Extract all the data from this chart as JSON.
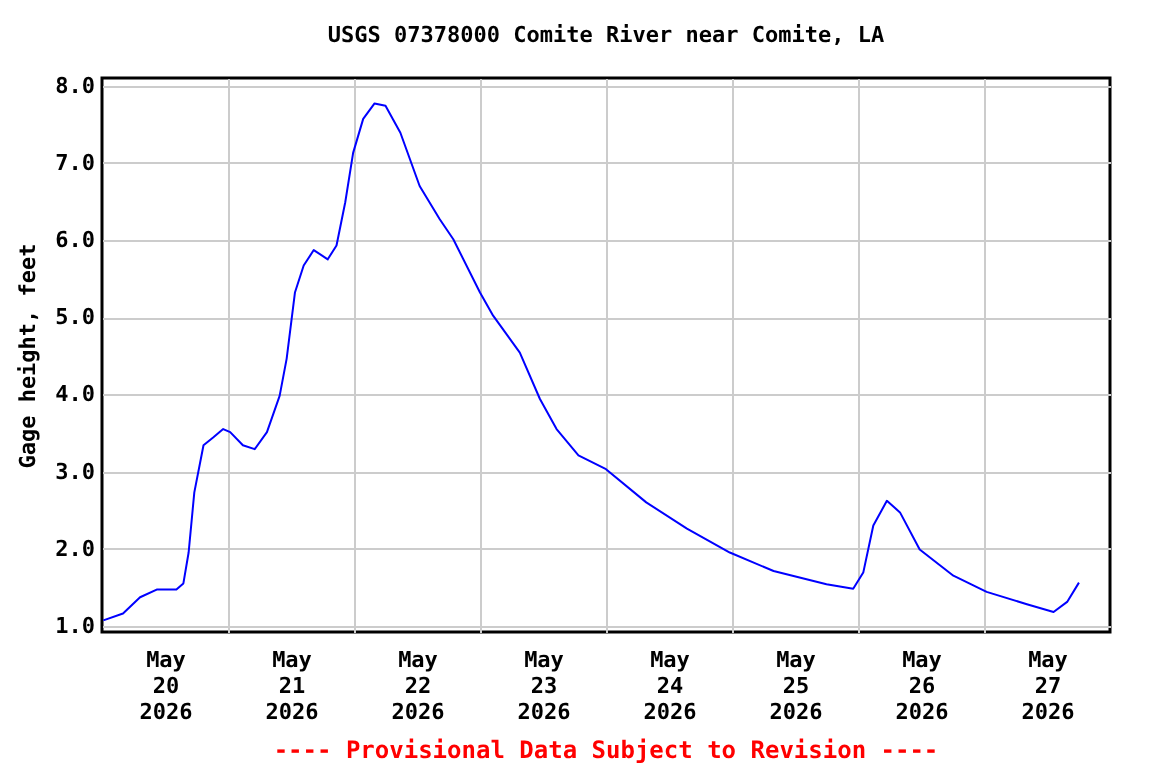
{
  "chart_data": {
    "type": "line",
    "title": "USGS 07378000 Comite River near Comite, LA",
    "ylabel": "Gage height, feet",
    "annotations": [
      "---- Provisional Data Subject to Revision ----"
    ],
    "x": [
      "2026-05-20T00:15",
      "2026-05-20T04:00",
      "2026-05-20T07:15",
      "2026-05-20T10:25",
      "2026-05-20T14:10",
      "2026-05-20T15:30",
      "2026-05-20T16:30",
      "2026-05-20T17:35",
      "2026-05-20T19:20",
      "2026-05-20T21:10",
      "2026-05-20T23:05",
      "2026-05-21T00:25",
      "2026-05-21T02:50",
      "2026-05-21T05:05",
      "2026-05-21T07:25",
      "2026-05-21T09:50",
      "2026-05-21T11:10",
      "2026-05-21T12:45",
      "2026-05-21T14:25",
      "2026-05-21T16:20",
      "2026-05-21T19:00",
      "2026-05-21T20:40",
      "2026-05-21T22:20",
      "2026-05-21T23:50",
      "2026-05-22T01:45",
      "2026-05-22T03:55",
      "2026-05-22T06:00",
      "2026-05-22T08:50",
      "2026-05-22T12:30",
      "2026-05-22T16:20",
      "2026-05-22T18:55",
      "2026-05-23T00:00",
      "2026-05-23T02:30",
      "2026-05-23T07:35",
      "2026-05-23T11:25",
      "2026-05-23T14:35",
      "2026-05-23T18:45",
      "2026-05-24T00:00",
      "2026-05-24T07:40",
      "2026-05-24T15:25",
      "2026-05-24T23:35",
      "2026-05-25T07:55",
      "2026-05-25T18:00",
      "2026-05-25T23:05",
      "2026-05-26T01:00",
      "2026-05-26T02:55",
      "2026-05-26T05:30",
      "2026-05-26T08:00",
      "2026-05-26T11:45",
      "2026-05-26T18:10",
      "2026-05-27T00:30",
      "2026-05-27T08:10",
      "2026-05-27T13:15",
      "2026-05-27T15:50",
      "2026-05-27T18:05"
    ],
    "series": [
      {
        "color": "#0000ff",
        "values": [
          1.07,
          1.16,
          1.37,
          1.47,
          1.47,
          1.55,
          1.95,
          2.73,
          3.34,
          3.44,
          3.55,
          3.51,
          3.34,
          3.29,
          3.51,
          3.98,
          4.46,
          5.32,
          5.67,
          5.87,
          5.75,
          5.93,
          6.49,
          7.13,
          7.57,
          7.77,
          7.74,
          7.39,
          6.7,
          6.27,
          6.01,
          5.32,
          5.02,
          4.54,
          3.94,
          3.55,
          3.21,
          3.03,
          2.6,
          2.26,
          1.95,
          1.71,
          1.54,
          1.48,
          1.69,
          2.3,
          2.62,
          2.47,
          1.99,
          1.65,
          1.44,
          1.28,
          1.18,
          1.31,
          1.56
        ]
      }
    ],
    "xlim": [
      "2026-05-20T00:00",
      "2026-05-28T00:00"
    ],
    "xticks": [
      {
        "value": "2026-05-20T12:00",
        "label": "May\n20\n2026"
      },
      {
        "value": "2026-05-21T00:00",
        "label": null
      },
      {
        "value": "2026-05-21T12:00",
        "label": "May\n21\n2026"
      },
      {
        "value": "2026-05-22T00:00",
        "label": null
      },
      {
        "value": "2026-05-22T12:00",
        "label": "May\n22\n2026"
      },
      {
        "value": "2026-05-23T00:00",
        "label": null
      },
      {
        "value": "2026-05-23T12:00",
        "label": "May\n23\n2026"
      },
      {
        "value": "2026-05-24T00:00",
        "label": null
      },
      {
        "value": "2026-05-24T12:00",
        "label": "May\n24\n2026"
      },
      {
        "value": "2026-05-25T00:00",
        "label": null
      },
      {
        "value": "2026-05-25T12:00",
        "label": "May\n25\n2026"
      },
      {
        "value": "2026-05-26T00:00",
        "label": null
      },
      {
        "value": "2026-05-26T12:00",
        "label": "May\n26\n2026"
      },
      {
        "value": "2026-05-27T00:00",
        "label": null
      },
      {
        "value": "2026-05-27T12:00",
        "label": "May\n27\n2026"
      }
    ],
    "ylim": [
      0.92,
      8.1
    ],
    "yticks": [
      {
        "value": 1,
        "label": "1.0"
      },
      {
        "value": 2,
        "label": "2.0"
      },
      {
        "value": 3,
        "label": "3.0"
      },
      {
        "value": 4,
        "label": "4.0"
      },
      {
        "value": 5,
        "label": "5.0"
      },
      {
        "value": 6,
        "label": "6.0"
      },
      {
        "value": 7,
        "label": "7.0"
      },
      {
        "value": 8,
        "label": "8.0"
      }
    ],
    "grid": true,
    "marker": "none",
    "line_style": "solid"
  }
}
